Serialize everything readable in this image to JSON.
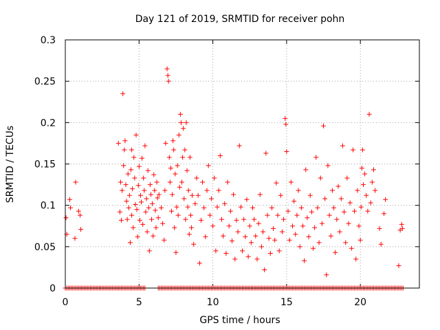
{
  "chart_data": {
    "type": "scatter",
    "title": "Day 121 of 2019, SRMTID for receiver pohn",
    "xlabel": "GPS time / hours",
    "ylabel": "SRMTID / TECUs",
    "xlim": [
      0,
      24
    ],
    "ylim": [
      0,
      0.3
    ],
    "x_ticks": [
      0,
      5,
      10,
      15,
      20
    ],
    "x_tick_labels": [
      "0",
      "5",
      "10",
      "15",
      "20"
    ],
    "y_ticks": [
      0,
      0.05,
      0.1,
      0.15,
      0.2,
      0.25,
      0.3
    ],
    "y_tick_labels": [
      "0",
      "0.05",
      "0.1",
      "0.15",
      "0.2",
      "0.25",
      "0.3"
    ],
    "grid": true,
    "marker": "plus",
    "series": [
      {
        "name": "SRMTID",
        "color": "#ff0000",
        "points": [
          [
            0.05,
            0.085
          ],
          [
            0.1,
            0.065
          ],
          [
            0.3,
            0.107
          ],
          [
            0.35,
            0.097
          ],
          [
            0.7,
            0.128
          ],
          [
            0.65,
            0.06
          ],
          [
            0.9,
            0.093
          ],
          [
            1.0,
            0.088
          ],
          [
            1.05,
            0.071
          ],
          [
            3.6,
            0.175
          ],
          [
            3.7,
            0.092
          ],
          [
            3.75,
            0.128
          ],
          [
            3.8,
            0.082
          ],
          [
            3.85,
            0.118
          ],
          [
            3.9,
            0.235
          ],
          [
            3.95,
            0.148
          ],
          [
            4.0,
            0.167
          ],
          [
            4.05,
            0.178
          ],
          [
            4.1,
            0.125
          ],
          [
            4.15,
            0.105
          ],
          [
            4.2,
            0.083
          ],
          [
            4.25,
            0.138
          ],
          [
            4.3,
            0.097
          ],
          [
            4.35,
            0.112
          ],
          [
            4.4,
            0.055
          ],
          [
            4.45,
            0.143
          ],
          [
            4.5,
            0.167
          ],
          [
            4.5,
            0.088
          ],
          [
            4.55,
            0.12
          ],
          [
            4.6,
            0.073
          ],
          [
            4.65,
            0.158
          ],
          [
            4.7,
            0.133
          ],
          [
            4.75,
            0.101
          ],
          [
            4.8,
            0.185
          ],
          [
            4.85,
            0.095
          ],
          [
            4.9,
            0.062
          ],
          [
            4.95,
            0.124
          ],
          [
            5.0,
            0.147
          ],
          [
            5.05,
            0.082
          ],
          [
            5.1,
            0.112
          ],
          [
            5.15,
            0.104
          ],
          [
            5.2,
            0.157
          ],
          [
            5.25,
            0.077
          ],
          [
            5.3,
            0.133
          ],
          [
            5.35,
            0.118
          ],
          [
            5.4,
            0.172
          ],
          [
            5.45,
            0.092
          ],
          [
            5.5,
            0.108
          ],
          [
            5.55,
            0.068
          ],
          [
            5.6,
            0.142
          ],
          [
            5.65,
            0.097
          ],
          [
            5.7,
            0.045
          ],
          [
            5.75,
            0.125
          ],
          [
            5.8,
            0.113
          ],
          [
            5.85,
            0.083
          ],
          [
            5.9,
            0.102
          ],
          [
            5.95,
            0.063
          ],
          [
            6.0,
            0.137
          ],
          [
            6.05,
            0.118
          ],
          [
            6.1,
            0.094
          ],
          [
            6.15,
            0.073
          ],
          [
            6.2,
            0.128
          ],
          [
            6.25,
            0.109
          ],
          [
            6.3,
            0.085
          ],
          [
            6.35,
            0.113
          ],
          [
            6.5,
            0.097
          ],
          [
            6.6,
            0.078
          ],
          [
            6.7,
            0.058
          ],
          [
            6.75,
            0.118
          ],
          [
            6.8,
            0.175
          ],
          [
            6.9,
            0.265
          ],
          [
            6.95,
            0.257
          ],
          [
            7.0,
            0.25
          ],
          [
            7.05,
            0.158
          ],
          [
            7.1,
            0.128
          ],
          [
            7.15,
            0.145
          ],
          [
            7.2,
            0.093
          ],
          [
            7.25,
            0.113
          ],
          [
            7.3,
            0.178
          ],
          [
            7.35,
            0.167
          ],
          [
            7.4,
            0.073
          ],
          [
            7.45,
            0.138
          ],
          [
            7.5,
            0.043
          ],
          [
            7.55,
            0.098
          ],
          [
            7.6,
            0.148
          ],
          [
            7.65,
            0.088
          ],
          [
            7.7,
            0.185
          ],
          [
            7.75,
            0.122
          ],
          [
            7.8,
            0.21
          ],
          [
            7.85,
            0.2
          ],
          [
            7.9,
            0.128
          ],
          [
            7.95,
            0.158
          ],
          [
            8.0,
            0.193
          ],
          [
            8.05,
            0.108
          ],
          [
            8.1,
            0.167
          ],
          [
            8.15,
            0.083
          ],
          [
            8.2,
            0.2
          ],
          [
            8.25,
            0.142
          ],
          [
            8.3,
            0.098
          ],
          [
            8.35,
            0.118
          ],
          [
            8.4,
            0.065
          ],
          [
            8.45,
            0.158
          ],
          [
            8.5,
            0.088
          ],
          [
            8.55,
            0.073
          ],
          [
            8.6,
            0.112
          ],
          [
            8.7,
            0.053
          ],
          [
            8.8,
            0.102
          ],
          [
            8.9,
            0.133
          ],
          [
            9.0,
            0.112
          ],
          [
            9.1,
            0.03
          ],
          [
            9.2,
            0.082
          ],
          [
            9.3,
            0.128
          ],
          [
            9.4,
            0.097
          ],
          [
            9.5,
            0.062
          ],
          [
            9.6,
            0.118
          ],
          [
            9.7,
            0.148
          ],
          [
            9.8,
            0.088
          ],
          [
            9.9,
            0.108
          ],
          [
            10.0,
            0.075
          ],
          [
            10.1,
            0.133
          ],
          [
            10.2,
            0.045
          ],
          [
            10.3,
            0.098
          ],
          [
            10.4,
            0.118
          ],
          [
            10.5,
            0.16
          ],
          [
            10.6,
            0.083
          ],
          [
            10.7,
            0.063
          ],
          [
            10.8,
            0.102
          ],
          [
            10.9,
            0.042
          ],
          [
            11.0,
            0.128
          ],
          [
            11.1,
            0.075
          ],
          [
            11.2,
            0.093
          ],
          [
            11.3,
            0.057
          ],
          [
            11.4,
            0.113
          ],
          [
            11.5,
            0.035
          ],
          [
            11.6,
            0.082
          ],
          [
            11.7,
            0.068
          ],
          [
            11.8,
            0.172
          ],
          [
            11.9,
            0.098
          ],
          [
            12.0,
            0.045
          ],
          [
            12.1,
            0.083
          ],
          [
            12.2,
            0.062
          ],
          [
            12.3,
            0.107
          ],
          [
            12.4,
            0.038
          ],
          [
            12.5,
            0.075
          ],
          [
            12.6,
            0.055
          ],
          [
            12.7,
            0.097
          ],
          [
            12.8,
            0.083
          ],
          [
            12.9,
            0.063
          ],
          [
            13.0,
            0.035
          ],
          [
            13.1,
            0.078
          ],
          [
            13.2,
            0.113
          ],
          [
            13.3,
            0.05
          ],
          [
            13.4,
            0.068
          ],
          [
            13.5,
            0.022
          ],
          [
            13.6,
            0.163
          ],
          [
            13.7,
            0.088
          ],
          [
            13.8,
            0.06
          ],
          [
            13.9,
            0.042
          ],
          [
            14.0,
            0.097
          ],
          [
            14.1,
            0.072
          ],
          [
            14.2,
            0.058
          ],
          [
            14.3,
            0.127
          ],
          [
            14.4,
            0.088
          ],
          [
            14.5,
            0.045
          ],
          [
            14.6,
            0.112
          ],
          [
            14.7,
            0.068
          ],
          [
            14.8,
            0.083
          ],
          [
            14.9,
            0.205
          ],
          [
            14.95,
            0.198
          ],
          [
            15.0,
            0.165
          ],
          [
            15.1,
            0.093
          ],
          [
            15.2,
            0.058
          ],
          [
            15.3,
            0.128
          ],
          [
            15.4,
            0.075
          ],
          [
            15.5,
            0.105
          ],
          [
            15.6,
            0.065
          ],
          [
            15.7,
            0.088
          ],
          [
            15.8,
            0.118
          ],
          [
            15.9,
            0.05
          ],
          [
            16.0,
            0.097
          ],
          [
            16.1,
            0.075
          ],
          [
            16.2,
            0.033
          ],
          [
            16.3,
            0.143
          ],
          [
            16.4,
            0.085
          ],
          [
            16.5,
            0.062
          ],
          [
            16.6,
            0.112
          ],
          [
            16.7,
            0.092
          ],
          [
            16.8,
            0.048
          ],
          [
            16.9,
            0.073
          ],
          [
            17.0,
            0.158
          ],
          [
            17.1,
            0.097
          ],
          [
            17.2,
            0.055
          ],
          [
            17.3,
            0.133
          ],
          [
            17.4,
            0.078
          ],
          [
            17.5,
            0.196
          ],
          [
            17.6,
            0.108
          ],
          [
            17.7,
            0.016
          ],
          [
            17.8,
            0.148
          ],
          [
            17.9,
            0.088
          ],
          [
            18.0,
            0.063
          ],
          [
            18.1,
            0.118
          ],
          [
            18.2,
            0.097
          ],
          [
            18.3,
            0.043
          ],
          [
            18.4,
            0.083
          ],
          [
            18.5,
            0.123
          ],
          [
            18.6,
            0.068
          ],
          [
            18.7,
            0.108
          ],
          [
            18.8,
            0.172
          ],
          [
            18.9,
            0.092
          ],
          [
            19.0,
            0.055
          ],
          [
            19.1,
            0.133
          ],
          [
            19.2,
            0.078
          ],
          [
            19.3,
            0.103
          ],
          [
            19.4,
            0.048
          ],
          [
            19.5,
            0.167
          ],
          [
            19.6,
            0.093
          ],
          [
            19.7,
            0.035
          ],
          [
            19.8,
            0.118
          ],
          [
            19.9,
            0.075
          ],
          [
            20.0,
            0.058
          ],
          [
            20.05,
            0.098
          ],
          [
            20.1,
            0.145
          ],
          [
            20.15,
            0.167
          ],
          [
            20.2,
            0.125
          ],
          [
            20.3,
            0.138
          ],
          [
            20.4,
            0.112
          ],
          [
            20.5,
            0.093
          ],
          [
            20.6,
            0.21
          ],
          [
            20.7,
            0.103
          ],
          [
            20.8,
            0.128
          ],
          [
            20.9,
            0.143
          ],
          [
            21.0,
            0.118
          ],
          [
            21.3,
            0.072
          ],
          [
            21.4,
            0.053
          ],
          [
            21.6,
            0.09
          ],
          [
            21.7,
            0.107
          ],
          [
            22.6,
            0.027
          ],
          [
            22.7,
            0.07
          ],
          [
            22.8,
            0.077
          ],
          [
            22.85,
            0.072
          ]
        ]
      }
    ],
    "zero_points_x": [
      0.0,
      0.1,
      0.2,
      0.3,
      0.4,
      0.5,
      0.6,
      0.7,
      0.8,
      0.9,
      1.0,
      1.1,
      1.2,
      1.3,
      1.4,
      1.5,
      1.6,
      1.7,
      1.8,
      1.9,
      2.0,
      2.1,
      2.2,
      2.3,
      2.4,
      2.5,
      2.6,
      2.7,
      2.8,
      2.9,
      3.0,
      3.1,
      3.2,
      3.3,
      3.4,
      3.5,
      3.6,
      3.7,
      3.8,
      3.9,
      4.0,
      4.1,
      4.2,
      4.3,
      4.4,
      4.5,
      4.6,
      4.7,
      4.8,
      4.9,
      5.0,
      5.1,
      5.2,
      5.3,
      5.4,
      6.3,
      6.4,
      6.5,
      6.6,
      6.7,
      6.8,
      6.9,
      7.0,
      7.1,
      7.2,
      7.3,
      7.4,
      7.5,
      7.6,
      7.7,
      7.8,
      7.9,
      8.0,
      8.1,
      8.2,
      8.3,
      8.4,
      8.5,
      8.6,
      8.7,
      8.8,
      8.9,
      9.0,
      9.1,
      9.2,
      9.3,
      9.4,
      9.5,
      9.6,
      9.7,
      9.8,
      9.9,
      10.0,
      10.1,
      10.2,
      10.3,
      10.4,
      10.5,
      10.6,
      10.7,
      10.8,
      10.9,
      11.0,
      11.1,
      11.2,
      11.3,
      11.4,
      11.5,
      11.6,
      11.7,
      11.8,
      11.9,
      12.0,
      12.1,
      12.2,
      12.3,
      12.4,
      12.5,
      12.6,
      12.7,
      12.8,
      12.9,
      13.0,
      13.1,
      13.2,
      13.3,
      13.4,
      13.5,
      13.6,
      13.7,
      13.8,
      13.9,
      14.0,
      14.1,
      14.2,
      14.3,
      14.4,
      14.5,
      14.6,
      14.7,
      14.8,
      14.9,
      15.0,
      15.1,
      15.2,
      15.3,
      15.4,
      15.5,
      15.6,
      15.7,
      15.8,
      15.9,
      16.0,
      16.1,
      16.2,
      16.3,
      16.4,
      16.5,
      16.6,
      16.7,
      16.8,
      16.9,
      17.0,
      17.1,
      17.2,
      17.3,
      17.4,
      17.5,
      17.6,
      17.7,
      17.8,
      17.9,
      18.0,
      18.1,
      18.2,
      18.3,
      18.4,
      18.5,
      18.6,
      18.7,
      18.8,
      18.9,
      19.0,
      19.1,
      19.2,
      19.3,
      19.4,
      19.5,
      19.6,
      19.7,
      19.8,
      19.9,
      20.0,
      20.1,
      20.2,
      20.3,
      20.4,
      20.5,
      20.6,
      20.7,
      20.8,
      20.9,
      21.0,
      21.1,
      21.2,
      21.3,
      21.4,
      21.5,
      21.6,
      21.7,
      21.8,
      21.9,
      22.0,
      22.1,
      22.2,
      22.3,
      22.4,
      22.5,
      22.6,
      22.7,
      22.8,
      22.9
    ]
  }
}
